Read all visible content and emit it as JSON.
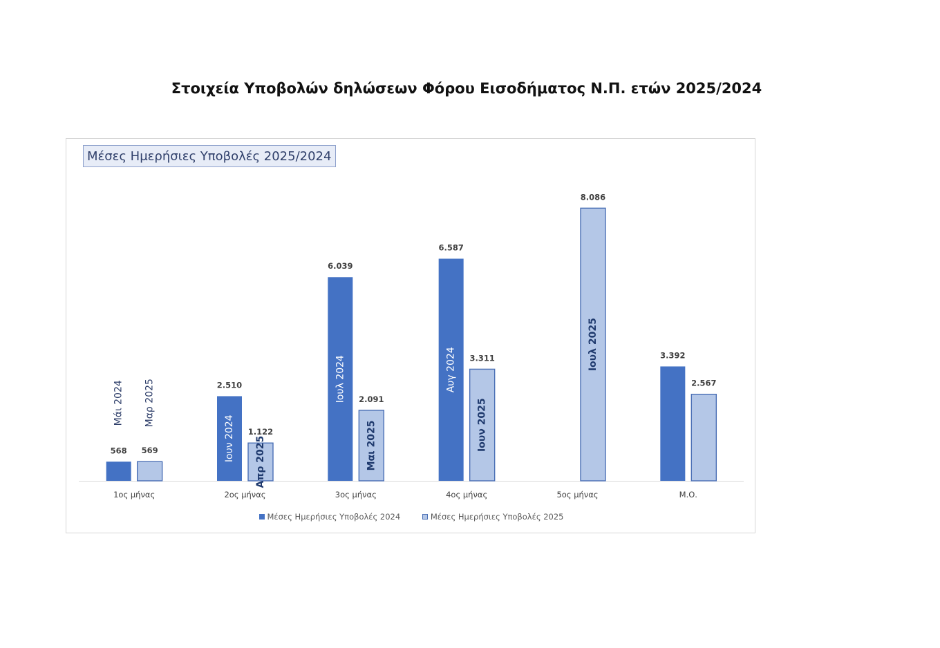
{
  "page": {
    "title": "Στοιχεία Υποβολών δηλώσεων Φόρου Εισοδήματος Ν.Π. ετών 2025/2024"
  },
  "colors": {
    "series_2024": "#4472c4",
    "series_2025": "#b4c7e7",
    "series_2025_border": "#4a6fb5",
    "label_on_dark": "#ffffff",
    "label_on_light": "#2f3f6a",
    "label_dark_text": "#1f3a6e",
    "axis": "#d9d9d9"
  },
  "chart_data": {
    "type": "bar",
    "title": "Μέσες Ημερήσιες Υποβολές 2025/2024",
    "categories": [
      "1ος μήνας",
      "2ος μήνας",
      "3ος μήνας",
      "4ος μήνας",
      "5ος μήνας",
      "Μ.Ο."
    ],
    "series": [
      {
        "name": "Μέσες Ημερήσιες Υποβολές 2024",
        "values": [
          568,
          2510,
          6039,
          6587,
          null,
          3392
        ],
        "value_labels": [
          "568",
          "2.510",
          "6.039",
          "6.587",
          "",
          "3.392"
        ],
        "month_labels": [
          "Μάι 2024",
          "Ιουν 2024",
          "Ιουλ 2024",
          "Αυγ 2024",
          "",
          ""
        ]
      },
      {
        "name": "Μέσες Ημερήσιες Υποβολές 2025",
        "values": [
          569,
          1122,
          2091,
          3311,
          8086,
          2567
        ],
        "value_labels": [
          "569",
          "1.122",
          "2.091",
          "3.311",
          "8.086",
          "2.567"
        ],
        "month_labels": [
          "Μαρ 2025",
          "Απρ 2025",
          "Μαι 2025",
          "Ιουν 2025",
          "Ιουλ 2025",
          ""
        ]
      }
    ],
    "ylim": [
      0,
      9000
    ],
    "grid": false,
    "legend_position": "bottom"
  }
}
